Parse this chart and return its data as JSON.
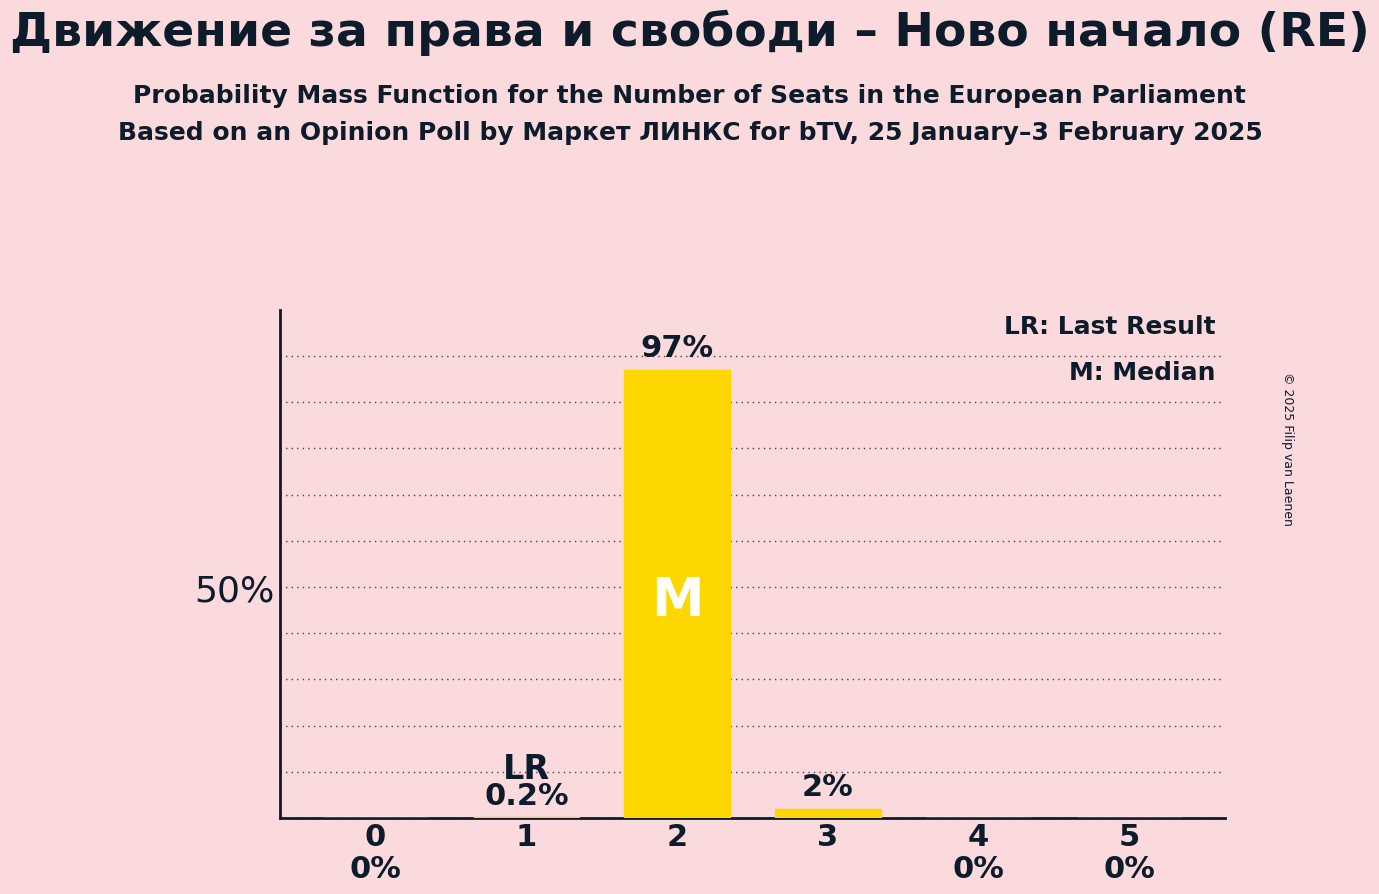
{
  "title": "Движение за права и свободи – Ново начало (RE)",
  "subtitle1": "Probability Mass Function for the Number of Seats in the European Parliament",
  "subtitle2": "Based on an Opinion Poll by Маркет ЛИНКС for bTV, 25 January–3 February 2025",
  "copyright": "© 2025 Filip van Laenen",
  "categories": [
    0,
    1,
    2,
    3,
    4,
    5
  ],
  "values": [
    0.0,
    0.2,
    97.0,
    2.0,
    0.0,
    0.0
  ],
  "bar_color": "#FFD700",
  "background_color": "#FADADD",
  "text_color": "#0d1b2a",
  "ylim": [
    0,
    110
  ],
  "yticks": [
    0,
    10,
    20,
    30,
    40,
    50,
    60,
    70,
    80,
    90,
    100
  ],
  "ylabel_value": 50,
  "bar_labels": [
    "0%",
    "0.2%",
    "97%",
    "2%",
    "0%",
    "0%"
  ],
  "lr_seat": 1,
  "median_seat": 2,
  "legend_lr": "LR: Last Result",
  "legend_m": "M: Median",
  "title_fontsize": 34,
  "subtitle_fontsize": 18,
  "bar_label_fontsize": 22,
  "tick_fontsize": 22,
  "ylabel_fontsize": 26,
  "annotation_fontsize": 24,
  "median_label_fontsize": 38
}
